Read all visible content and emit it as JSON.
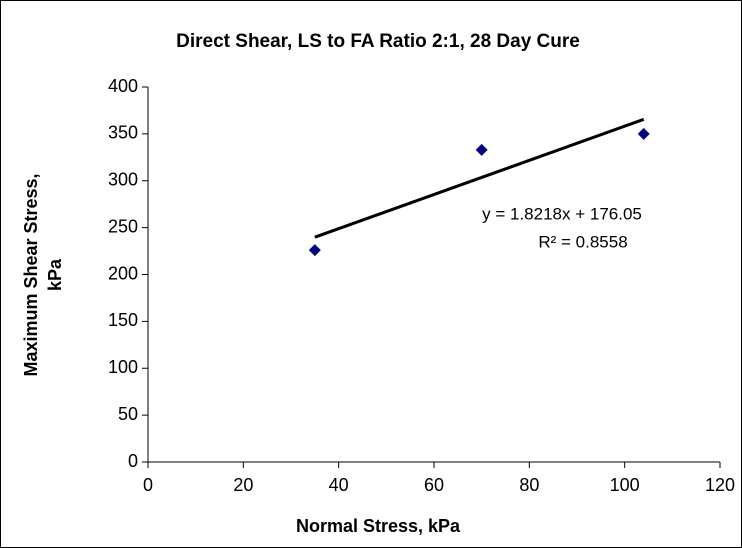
{
  "chart_data": {
    "type": "scatter",
    "title": "Direct Shear, LS to FA Ratio 2:1, 28 Day Cure",
    "xlabel": "Normal Stress, kPa",
    "ylabel": [
      "Maximum Shear Stress,",
      "kPa"
    ],
    "x": [
      35,
      70,
      104
    ],
    "series": [
      {
        "color": "#000080",
        "values": [
          226,
          333,
          350
        ]
      }
    ],
    "xlim": [
      0,
      120
    ],
    "xticks": [
      0,
      20,
      40,
      60,
      80,
      100,
      120
    ],
    "ylim": [
      0,
      400
    ],
    "yticks": [
      0,
      50,
      100,
      150,
      200,
      250,
      300,
      350,
      400
    ],
    "trendline": {
      "x": [
        35,
        104
      ],
      "values": [
        239.8,
        365.5
      ],
      "color": "#000000",
      "equation": "y = 1.8218x + 176.05",
      "r_squared": "R² = 0.8558"
    }
  }
}
